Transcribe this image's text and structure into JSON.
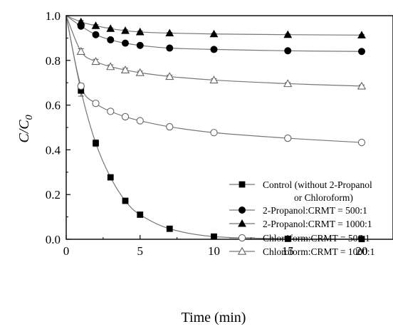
{
  "chart_data": {
    "type": "scatter",
    "xlabel": "Time (min)",
    "ylabel_main": "C/C",
    "ylabel_sub": "0",
    "xlim": [
      0,
      21.5
    ],
    "ylim": [
      0,
      1.0
    ],
    "xticks": [
      0,
      5,
      10,
      15,
      20
    ],
    "yticks": [
      0.0,
      0.2,
      0.4,
      0.6,
      0.8,
      1.0
    ],
    "ytick_labels": [
      "0.0",
      "0.2",
      "0.4",
      "0.6",
      "0.8",
      "1.0"
    ],
    "grid": false,
    "legend_position": "bottom-right",
    "series": [
      {
        "name_lines": [
          "Control (without 2-Propanol",
          "or Chloroform)"
        ],
        "marker": "square-filled",
        "x": [
          0,
          1,
          2,
          3,
          4,
          5,
          7,
          10,
          15,
          20
        ],
        "y": [
          1.0,
          0.665,
          0.43,
          0.277,
          0.172,
          0.11,
          0.047,
          0.012,
          0.002,
          0.001
        ],
        "errors": [
          0,
          0.025,
          0.015,
          0.01,
          0.01,
          0.007,
          0.005,
          0.003,
          0,
          0
        ]
      },
      {
        "name_lines": [
          "2-Propanol:CRMT = 500:1"
        ],
        "marker": "circle-filled",
        "x": [
          0,
          1,
          2,
          3,
          4,
          5,
          7,
          10,
          15,
          20
        ],
        "y": [
          1.0,
          0.953,
          0.915,
          0.892,
          0.877,
          0.867,
          0.855,
          0.849,
          0.843,
          0.84
        ],
        "errors": [
          0,
          0.008,
          0.006,
          0.005,
          0.005,
          0.004,
          0.004,
          0.003,
          0.003,
          0.003
        ]
      },
      {
        "name_lines": [
          "2-Propanol:CRMT = 1000:1"
        ],
        "marker": "triangle-filled",
        "x": [
          0,
          1,
          2,
          3,
          4,
          5,
          7,
          10,
          15,
          20
        ],
        "y": [
          1.0,
          0.972,
          0.955,
          0.942,
          0.933,
          0.927,
          0.922,
          0.918,
          0.915,
          0.913
        ],
        "errors": [
          0,
          0.006,
          0.005,
          0.004,
          0.004,
          0.004,
          0.003,
          0.003,
          0.003,
          0.003
        ]
      },
      {
        "name_lines": [
          "Chloroform:CRMT = 500:1"
        ],
        "marker": "circle-open",
        "x": [
          0,
          1,
          2,
          3,
          4,
          5,
          7,
          10,
          15,
          20
        ],
        "y": [
          1.0,
          0.685,
          0.608,
          0.572,
          0.548,
          0.53,
          0.503,
          0.477,
          0.452,
          0.433
        ],
        "errors": [
          0,
          0.012,
          0.01,
          0.008,
          0.008,
          0.007,
          0.006,
          0.006,
          0.005,
          0.005
        ]
      },
      {
        "name_lines": [
          "Chloroform:CRMT = 1000:1"
        ],
        "marker": "triangle-open",
        "x": [
          0,
          1,
          2,
          3,
          4,
          5,
          7,
          10,
          15,
          20
        ],
        "y": [
          1.0,
          0.84,
          0.795,
          0.772,
          0.757,
          0.745,
          0.728,
          0.712,
          0.696,
          0.685
        ],
        "errors": [
          0,
          0.012,
          0.01,
          0.008,
          0.008,
          0.007,
          0.006,
          0.006,
          0.005,
          0.005
        ]
      }
    ]
  }
}
